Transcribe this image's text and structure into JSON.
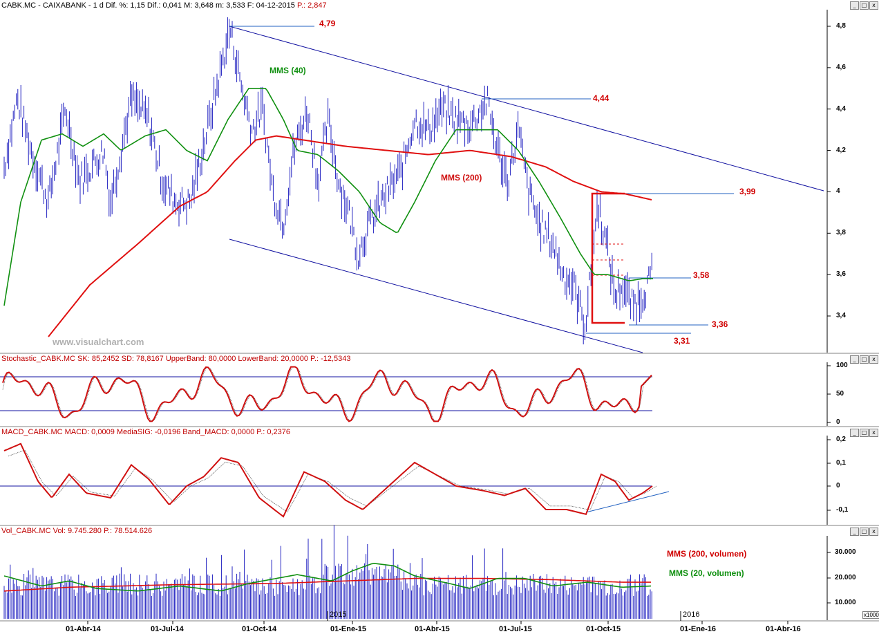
{
  "headers": {
    "price": "CABK.MC - CAIXABANK - 1 d Dif. %: 1,15 Dif.: 0,041 M: 3,648 m: 3,533 F: 04-12-2015",
    "price_p": "P.: 2,847",
    "stoch": "Stochastic_CABK.MC SK: 85,2452 SD: 78,8167 UpperBand: 80,0000 LowerBand: 20,0000 P.: -12,5343",
    "macd": "MACD_CABK.MC MACD: 0,0009 MediaSIG: -0,0196 Band_MACD: 0,0000 P.: 0,2376",
    "vol": "Vol_CABK.MC Vol: 9.745.280 P.: 78.514.626"
  },
  "watermark": "www.visualchart.com",
  "window_buttons": [
    "_",
    "□",
    "x"
  ],
  "colors": {
    "price": "#2020c0",
    "mms40": "#109010",
    "mms200": "#e01010",
    "trend": "#0000a0",
    "level": "#2060c0",
    "label": "#d00000",
    "stoch_k": "#d01010",
    "volume": "#2020c0"
  },
  "annotations": {
    "mms40_label": "MMS (40)",
    "mms200_label": "MMS (200)",
    "mms200_vol_label": "MMS (200, volumen)",
    "mms20_vol_label": "MMS (20, volumen)",
    "level_479": "4,79",
    "level_444": "4,44",
    "level_399": "3,99",
    "level_358": "3,58",
    "level_336": "3,36",
    "level_331": "3,31"
  },
  "year_labels": [
    "2015",
    "2016"
  ],
  "x1000_label": "x1000",
  "axes": {
    "price_ticks": [
      "4,8",
      "4,6",
      "4,4",
      "4,2",
      "4",
      "3,8",
      "3,6",
      "3,4"
    ],
    "stoch_ticks": [
      "100",
      "50",
      "0"
    ],
    "macd_ticks": [
      "0,2",
      "0,1",
      "0",
      "-0,1"
    ],
    "vol_ticks": [
      "30.000",
      "20.000",
      "10.000"
    ],
    "x_ticks": [
      "01-Abr-14",
      "01-Jul-14",
      "01-Oct-14",
      "01-Ene-15",
      "01-Abr-15",
      "01-Jul-15",
      "01-Oct-15",
      "01-Ene-16",
      "01-Abr-16"
    ]
  },
  "chart_data": [
    {
      "type": "line",
      "title": "CABK.MC - CAIXABANK - 1 d",
      "x": [
        "2014-01",
        "2014-02",
        "2014-03",
        "2014-04",
        "2014-05",
        "2014-06",
        "2014-07",
        "2014-08",
        "2014-09",
        "2014-10",
        "2014-11",
        "2014-12",
        "2015-01",
        "2015-02",
        "2015-03",
        "2015-04",
        "2015-05",
        "2015-06",
        "2015-07",
        "2015-08",
        "2015-09",
        "2015-10",
        "2015-11",
        "2015-12"
      ],
      "series": [
        {
          "name": "CABK.MC",
          "values": [
            4.0,
            4.35,
            4.1,
            4.25,
            4.3,
            4.0,
            4.2,
            4.55,
            4.6,
            4.1,
            3.95,
            4.2,
            3.7,
            3.8,
            4.1,
            4.3,
            4.38,
            4.3,
            4.25,
            3.85,
            3.5,
            3.75,
            3.5,
            3.648
          ]
        },
        {
          "name": "MMS (40)",
          "values": [
            3.7,
            4.1,
            4.25,
            4.25,
            4.22,
            4.25,
            4.12,
            4.2,
            4.45,
            4.45,
            4.2,
            4.2,
            4.1,
            3.85,
            3.95,
            4.25,
            4.32,
            4.28,
            4.15,
            3.95,
            3.7,
            3.6,
            3.57,
            3.58
          ]
        },
        {
          "name": "MMS (200)",
          "values": [
            null,
            null,
            null,
            3.45,
            3.75,
            3.95,
            4.05,
            4.2,
            4.27,
            4.25,
            4.25,
            4.2,
            4.15,
            4.12,
            4.1,
            4.12,
            4.13,
            4.15,
            4.12,
            4.05,
            3.99,
            3.97,
            null,
            null
          ]
        }
      ],
      "ylim": [
        3.25,
        4.85
      ],
      "annotations": [
        "4,79",
        "4,44",
        "3,99",
        "3,58",
        "3,36",
        "3,31"
      ]
    },
    {
      "type": "line",
      "title": "Stochastic_CABK.MC",
      "series": [
        {
          "name": "SK",
          "last": 85.2452
        },
        {
          "name": "SD",
          "last": 78.8167
        }
      ],
      "bands": [
        80,
        20
      ],
      "ylim": [
        0,
        100
      ]
    },
    {
      "type": "line",
      "title": "MACD_CABK.MC",
      "series": [
        {
          "name": "MACD",
          "last": 0.0009
        },
        {
          "name": "MediaSIG",
          "last": -0.0196
        }
      ],
      "ylim": [
        -0.15,
        0.2
      ]
    },
    {
      "type": "bar",
      "title": "Vol_CABK.MC",
      "series": [
        {
          "name": "Vol",
          "last": 9745.28
        },
        {
          "name": "MMS (200, volumen)",
          "last": 14500
        },
        {
          "name": "MMS (20, volumen)",
          "last": 13000
        }
      ],
      "ylabel": "x1000",
      "ylim": [
        0,
        38000
      ]
    }
  ]
}
